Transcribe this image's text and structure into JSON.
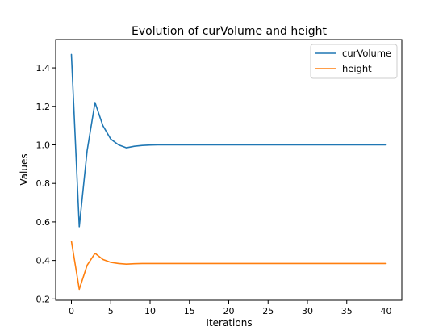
{
  "chart_data": {
    "type": "line",
    "title": "Evolution of curVolume and height",
    "xlabel": "Iterations",
    "ylabel": "Values",
    "xlim": [
      -2,
      42
    ],
    "ylim": [
      0.193,
      1.547
    ],
    "xticks": [
      0,
      5,
      10,
      15,
      20,
      25,
      30,
      35,
      40
    ],
    "yticks": [
      0.2,
      0.4,
      0.6,
      0.8,
      1.0,
      1.2,
      1.4
    ],
    "ytick_labels": [
      "0.2",
      "0.4",
      "0.6",
      "0.8",
      "1.0",
      "1.2",
      "1.4"
    ],
    "grid": false,
    "legend_position": "top-right",
    "x": [
      0,
      1,
      2,
      3,
      4,
      5,
      6,
      7,
      8,
      9,
      10,
      11,
      12,
      13,
      14,
      15,
      16,
      17,
      18,
      19,
      20,
      21,
      22,
      23,
      24,
      25,
      26,
      27,
      28,
      29,
      30,
      31,
      32,
      33,
      34,
      35,
      36,
      37,
      38,
      39,
      40
    ],
    "series": [
      {
        "name": "curVolume",
        "color": "#1f77b4",
        "values": [
          1.47,
          0.575,
          0.97,
          1.22,
          1.1,
          1.03,
          1.0,
          0.985,
          0.993,
          0.997,
          0.999,
          1.0,
          1.0,
          1.0,
          1.0,
          1.0,
          1.0,
          1.0,
          1.0,
          1.0,
          1.0,
          1.0,
          1.0,
          1.0,
          1.0,
          1.0,
          1.0,
          1.0,
          1.0,
          1.0,
          1.0,
          1.0,
          1.0,
          1.0,
          1.0,
          1.0,
          1.0,
          1.0,
          1.0,
          1.0,
          1.0
        ]
      },
      {
        "name": "height",
        "color": "#ff7f0e",
        "values": [
          0.5,
          0.25,
          0.375,
          0.437,
          0.405,
          0.39,
          0.384,
          0.381,
          0.383,
          0.384,
          0.384,
          0.384,
          0.384,
          0.384,
          0.384,
          0.384,
          0.384,
          0.384,
          0.384,
          0.384,
          0.384,
          0.384,
          0.384,
          0.384,
          0.384,
          0.384,
          0.384,
          0.384,
          0.384,
          0.384,
          0.384,
          0.384,
          0.384,
          0.384,
          0.384,
          0.384,
          0.384,
          0.384,
          0.384,
          0.384,
          0.384
        ]
      }
    ]
  }
}
